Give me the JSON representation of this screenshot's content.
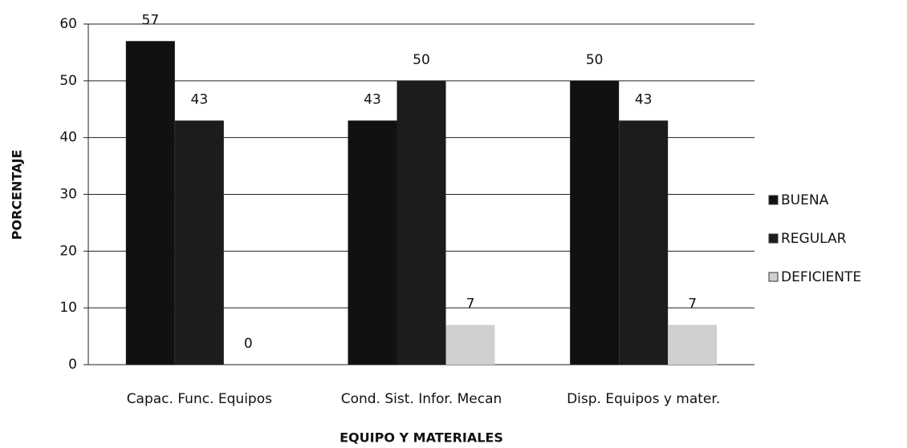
{
  "chart_data": {
    "type": "bar",
    "categories": [
      "Capac. Func. Equipos",
      "Cond. Sist. Infor. Mecan",
      "Disp. Equipos y mater."
    ],
    "series": [
      {
        "name": "BUENA",
        "color": "#111111",
        "values": [
          57,
          43,
          50
        ]
      },
      {
        "name": "REGULAR",
        "color": "#1c1c1c",
        "values": [
          43,
          50,
          43
        ]
      },
      {
        "name": "DEFICIENTE",
        "color": "#cfcfcf",
        "values": [
          0,
          7,
          7
        ]
      }
    ],
    "ylabel": "PORCENTAJE",
    "xlabel": "EQUIPO Y MATERIALES",
    "ylim": [
      0,
      60
    ],
    "yticks": [
      0,
      10,
      20,
      30,
      40,
      50,
      60
    ],
    "grid": true,
    "legend": "right"
  }
}
